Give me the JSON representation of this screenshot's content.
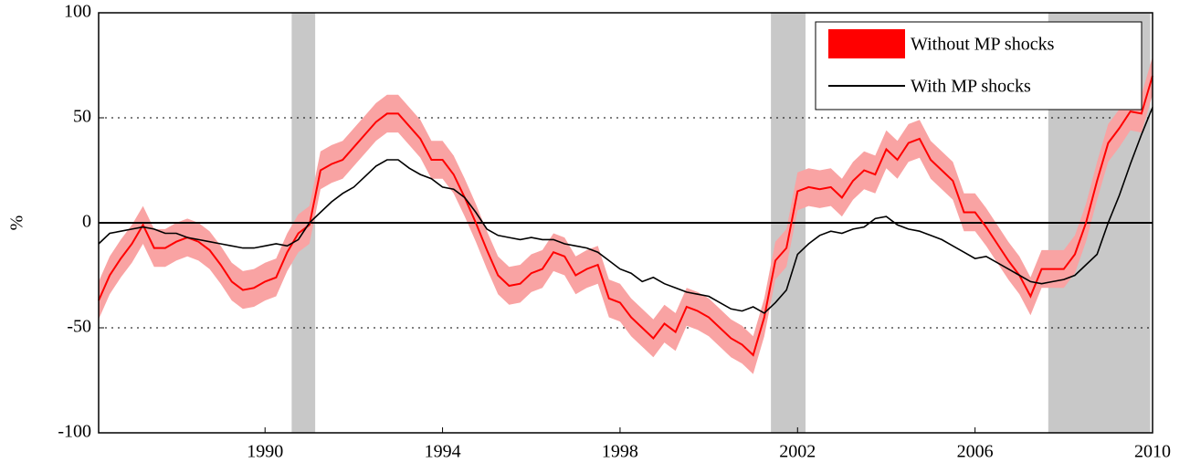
{
  "chart_data": {
    "type": "line",
    "y_label": "%",
    "xlim": [
      1986.25,
      2010
    ],
    "ylim": [
      -100,
      100
    ],
    "xticks": [
      1990,
      1994,
      1998,
      2002,
      2006,
      2010
    ],
    "yticks": [
      -100,
      -50,
      0,
      50,
      100
    ],
    "grid": true,
    "legend": "upper right",
    "shade_color": "#c8c8c8",
    "shaded_periods": [
      [
        1990.6,
        1991.13
      ],
      [
        2001.4,
        2002.18
      ],
      [
        2007.65,
        2009.95
      ]
    ],
    "x": [
      1986.25,
      1986.5,
      1986.75,
      1987,
      1987.25,
      1987.5,
      1987.75,
      1988,
      1988.25,
      1988.5,
      1988.75,
      1989,
      1989.25,
      1989.5,
      1989.75,
      1990,
      1990.25,
      1990.5,
      1990.75,
      1991,
      1991.25,
      1991.5,
      1991.75,
      1992,
      1992.25,
      1992.5,
      1992.75,
      1993,
      1993.25,
      1993.5,
      1993.75,
      1994,
      1994.25,
      1994.5,
      1994.75,
      1995,
      1995.25,
      1995.5,
      1995.75,
      1996,
      1996.25,
      1996.5,
      1996.75,
      1997,
      1997.25,
      1997.5,
      1997.75,
      1998,
      1998.25,
      1998.5,
      1998.75,
      1999,
      1999.25,
      1999.5,
      1999.75,
      2000,
      2000.25,
      2000.5,
      2000.75,
      2001,
      2001.25,
      2001.5,
      2001.75,
      2002,
      2002.25,
      2002.5,
      2002.75,
      2003,
      2003.25,
      2003.5,
      2003.75,
      2004,
      2004.25,
      2004.5,
      2004.75,
      2005,
      2005.25,
      2005.5,
      2005.75,
      2006,
      2006.25,
      2006.5,
      2006.75,
      2007,
      2007.25,
      2007.5,
      2007.75,
      2008,
      2008.25,
      2008.5,
      2008.75,
      2009,
      2009.25,
      2009.5,
      2009.75,
      2010
    ],
    "series": [
      {
        "name": "Without MP shocks",
        "color": "#ff0000",
        "band_color": "#f9a3a3",
        "values": [
          -37,
          -25,
          -17,
          -10,
          -1,
          -12,
          -12,
          -9,
          -7,
          -9,
          -13,
          -20,
          -28,
          -32,
          -31,
          -28,
          -26,
          -14,
          -5,
          -1,
          25,
          28,
          30,
          36,
          42,
          48,
          52,
          52,
          46,
          40,
          30,
          30,
          23,
          12,
          0,
          -13,
          -25,
          -30,
          -29,
          -24,
          -22,
          -14,
          -16,
          -25,
          -22,
          -20,
          -36,
          -38,
          -45,
          -50,
          -55,
          -48,
          -52,
          -40,
          -42,
          -45,
          -50,
          -55,
          -58,
          -63,
          -45,
          -18,
          -12,
          15,
          17,
          16,
          17,
          12,
          20,
          25,
          23,
          35,
          30,
          38,
          40,
          30,
          25,
          20,
          5,
          5,
          -2,
          -10,
          -18,
          -25,
          -35,
          -22,
          -22,
          -22,
          -15,
          0,
          20,
          38,
          45,
          53,
          52,
          70
        ],
        "band_upper": [
          -28,
          -16,
          -8,
          -1,
          8,
          -3,
          -3,
          0,
          2,
          0,
          -4,
          -11,
          -19,
          -23,
          -22,
          -19,
          -17,
          -5,
          4,
          8,
          34,
          37,
          39,
          45,
          51,
          57,
          61,
          61,
          55,
          49,
          39,
          39,
          32,
          21,
          9,
          -4,
          -16,
          -21,
          -20,
          -15,
          -13,
          -5,
          -7,
          -16,
          -13,
          -11,
          -27,
          -29,
          -36,
          -41,
          -46,
          -39,
          -43,
          -31,
          -33,
          -36,
          -41,
          -46,
          -49,
          -54,
          -36,
          -9,
          -3,
          24,
          26,
          25,
          26,
          21,
          29,
          34,
          32,
          44,
          39,
          47,
          49,
          39,
          34,
          29,
          14,
          14,
          7,
          -1,
          -9,
          -16,
          -26,
          -13,
          -13,
          -13,
          -6,
          9,
          29,
          47,
          54,
          62,
          61,
          79
        ],
        "band_lower": [
          -46,
          -34,
          -26,
          -19,
          -10,
          -21,
          -21,
          -18,
          -16,
          -18,
          -22,
          -29,
          -37,
          -41,
          -40,
          -37,
          -35,
          -23,
          -14,
          -10,
          16,
          19,
          21,
          27,
          33,
          39,
          43,
          43,
          37,
          31,
          21,
          21,
          14,
          3,
          -9,
          -22,
          -34,
          -39,
          -38,
          -33,
          -31,
          -23,
          -25,
          -34,
          -31,
          -29,
          -45,
          -47,
          -54,
          -59,
          -64,
          -57,
          -61,
          -49,
          -51,
          -54,
          -59,
          -64,
          -67,
          -72,
          -54,
          -27,
          -21,
          6,
          8,
          7,
          8,
          3,
          11,
          16,
          14,
          26,
          21,
          29,
          31,
          21,
          16,
          11,
          -4,
          -4,
          -11,
          -19,
          -27,
          -34,
          -44,
          -31,
          -31,
          -31,
          -24,
          -9,
          11,
          29,
          36,
          44,
          43,
          61
        ]
      },
      {
        "name": "With MP shocks",
        "color": "#000000",
        "values": [
          -10,
          -5,
          -4,
          -3,
          -2,
          -3,
          -5,
          -5,
          -7,
          -8,
          -9,
          -10,
          -11,
          -12,
          -12,
          -11,
          -10,
          -11,
          -8,
          0,
          5,
          10,
          14,
          17,
          22,
          27,
          30,
          30,
          26,
          23,
          21,
          17,
          16,
          12,
          5,
          -3,
          -6,
          -7,
          -8,
          -7,
          -8,
          -8,
          -10,
          -11,
          -12,
          -14,
          -18,
          -22,
          -24,
          -28,
          -26,
          -29,
          -31,
          -33,
          -34,
          -35,
          -38,
          -41,
          -42,
          -40,
          -43,
          -38,
          -32,
          -15,
          -10,
          -6,
          -4,
          -5,
          -3,
          -2,
          2,
          3,
          -1,
          -3,
          -4,
          -6,
          -8,
          -11,
          -14,
          -17,
          -16,
          -19,
          -22,
          -25,
          -28,
          -29,
          -28,
          -27,
          -25,
          -20,
          -15,
          0,
          13,
          28,
          42,
          55
        ]
      }
    ]
  }
}
